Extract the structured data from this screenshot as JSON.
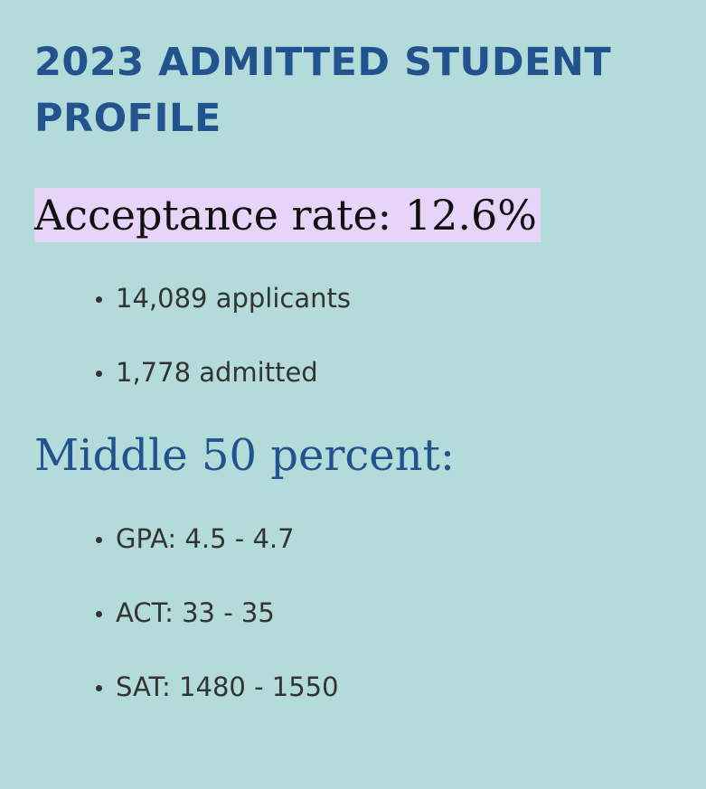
{
  "heading": {
    "title": "2023 ADMITTED STUDENT PROFILE"
  },
  "acceptance": {
    "label": "Acceptance rate: 12.6%"
  },
  "applications": {
    "items": [
      {
        "text": "14,089 applicants"
      },
      {
        "text": "1,778 admitted"
      }
    ]
  },
  "middle50": {
    "heading": "Middle 50 percent:",
    "items": [
      {
        "text": "GPA: 4.5 - 4.7"
      },
      {
        "text": "ACT: 33 - 35"
      },
      {
        "text": "SAT: 1480 - 1550"
      }
    ]
  },
  "colors": {
    "background": "#b2dbd9",
    "heading": "#23538e",
    "highlight": "#e6d5f8",
    "body_text": "#333333"
  }
}
